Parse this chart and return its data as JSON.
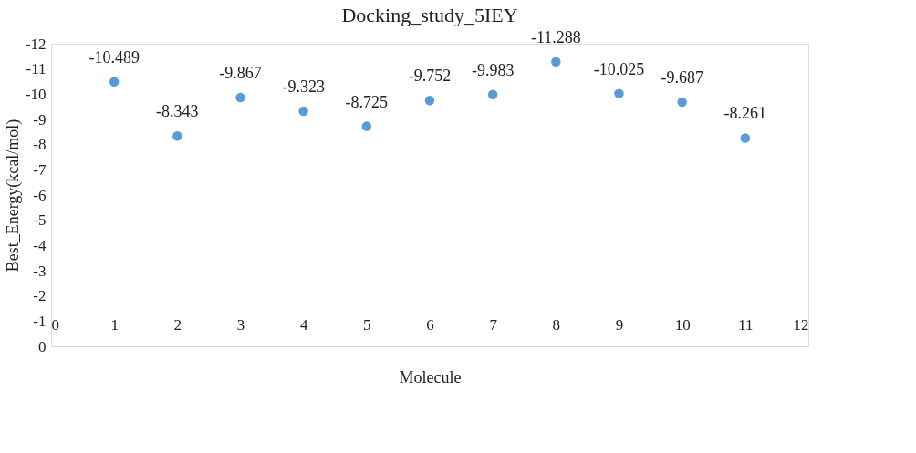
{
  "chart_data": {
    "type": "scatter",
    "title": "Docking_study_5IEY",
    "xlabel": "Molecule",
    "ylabel": "Best_Energy(kcal/mol)",
    "x": [
      1,
      2,
      3,
      4,
      5,
      6,
      7,
      8,
      9,
      10,
      11
    ],
    "series": [
      {
        "color": "#5b9bd5",
        "values": [
          -10.489,
          -8.343,
          -9.867,
          -9.323,
          -8.725,
          -9.752,
          -9.983,
          -11.288,
          -10.025,
          -9.687,
          -8.261
        ]
      }
    ],
    "xlim": [
      0,
      12
    ],
    "xticks": [
      0,
      1,
      2,
      3,
      4,
      5,
      6,
      7,
      8,
      9,
      10,
      11,
      12
    ],
    "ylim": [
      0,
      -12
    ],
    "yticks": [
      0,
      -1,
      -2,
      -3,
      -4,
      -5,
      -6,
      -7,
      -8,
      -9,
      -10,
      -11,
      -12
    ],
    "grid": false,
    "marker": "circle",
    "data_labels": true
  }
}
